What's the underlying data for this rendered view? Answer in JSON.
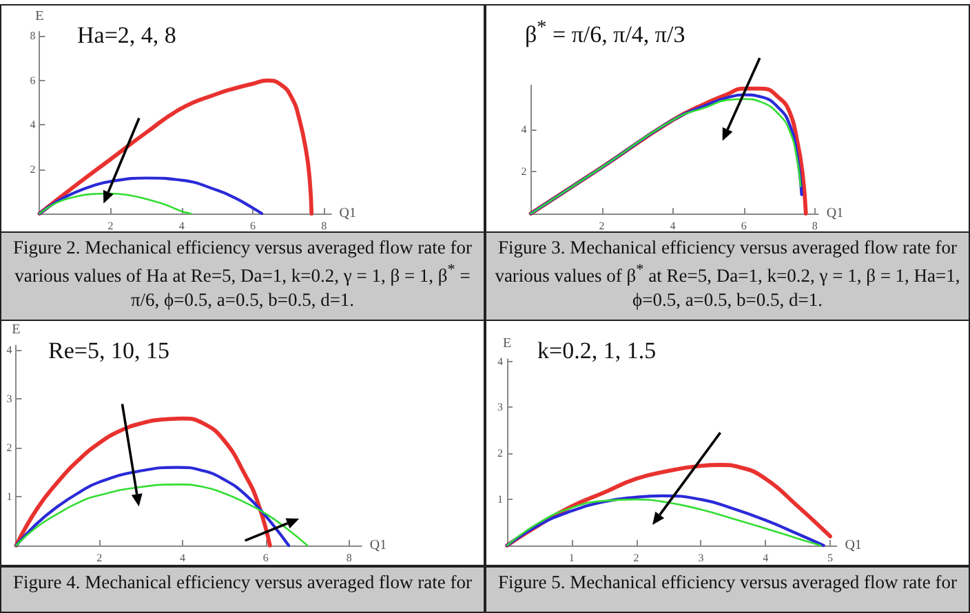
{
  "chart_data": [
    {
      "type": "line",
      "xlabel": "Q1",
      "ylabel": "E",
      "xlim": [
        0,
        8.2
      ],
      "ylim": [
        0,
        8.2
      ],
      "xticks": [
        2,
        4,
        6,
        8
      ],
      "yticks": [
        2,
        4,
        6,
        8
      ],
      "marker": "none",
      "line_style": "solid",
      "annotations": [
        "Ha=2, 4, 8",
        "Figure 2. Mechanical efficiency versus averaged flow rate for various values of Ha at Re=5, Da=1, k=0.2, γ = 1, β = 1, β$^{*}$ = π/6, ϕ=0.5, a=0.5, b=0.5, d=1."
      ],
      "series": [
        {
          "color": "#e8322f",
          "x": [
            0,
            1,
            2,
            3,
            4,
            5,
            5.5,
            6,
            6.4,
            6.8,
            7.1,
            7.3,
            7.5,
            7.6,
            7.65
          ],
          "values": [
            0,
            1.25,
            2.45,
            3.65,
            4.75,
            5.4,
            5.65,
            5.85,
            6.0,
            5.8,
            5.2,
            4.3,
            2.8,
            1.5,
            0
          ]
        },
        {
          "color": "#2a2ad8",
          "x": [
            0,
            0.5,
            1,
            1.5,
            2,
            3,
            4,
            5,
            5.5,
            6,
            6.25
          ],
          "values": [
            0,
            0.55,
            0.95,
            1.25,
            1.45,
            1.6,
            1.5,
            1.05,
            0.7,
            0.25,
            0
          ]
        },
        {
          "color": "#33dd33",
          "x": [
            0,
            0.5,
            1,
            1.5,
            2,
            2.5,
            3,
            3.5,
            4,
            4.25
          ],
          "values": [
            0,
            0.5,
            0.75,
            0.88,
            0.9,
            0.83,
            0.65,
            0.42,
            0.1,
            0
          ]
        }
      ]
    },
    {
      "type": "line",
      "xlabel": "Q1",
      "xlim": [
        0,
        8.1
      ],
      "ylim": [
        0,
        6.1
      ],
      "xticks": [
        2,
        4,
        6,
        8
      ],
      "yticks": [
        2,
        4
      ],
      "marker": "none",
      "line_style": "solid",
      "annotations": [
        "β$^{*}$ = π/6, π/4, π/3",
        "Figure 3. Mechanical efficiency versus averaged flow rate for various values of β$^{*}$ at Re=5, Da=1, k=0.2, γ = 1, β = 1, Ha=1, ϕ=0.5, a=0.5, b=0.5, d=1."
      ],
      "series": [
        {
          "color": "#e8322f",
          "x": [
            0,
            2,
            4,
            5,
            5.5,
            6,
            6.5,
            7,
            7.3,
            7.5,
            7.65,
            7.75
          ],
          "values": [
            0,
            2.2,
            4.45,
            5.3,
            5.65,
            5.95,
            5.95,
            5.5,
            4.8,
            3.5,
            2,
            0
          ]
        },
        {
          "color": "#2a2ad8",
          "x": [
            0,
            2,
            4,
            5,
            5.5,
            6,
            6.5,
            7,
            7.3,
            7.5,
            7.63
          ],
          "values": [
            0,
            2.2,
            4.45,
            5.2,
            5.5,
            5.65,
            5.55,
            5.0,
            4.2,
            2.8,
            0.9
          ]
        },
        {
          "color": "#33dd33",
          "x": [
            0,
            2,
            4,
            5,
            5.5,
            6,
            6.5,
            7,
            7.3,
            7.5,
            7.6
          ],
          "values": [
            0,
            2.2,
            4.45,
            5.1,
            5.4,
            5.45,
            5.3,
            4.7,
            3.9,
            2.6,
            1.3
          ]
        }
      ]
    },
    {
      "type": "line",
      "xlabel": "Q1",
      "ylabel": "E",
      "xlim": [
        0,
        8.3
      ],
      "ylim": [
        0,
        4.1
      ],
      "xticks": [
        2,
        4,
        6,
        8
      ],
      "yticks": [
        1,
        2,
        3,
        4
      ],
      "marker": "none",
      "line_style": "solid",
      "annotations": [
        "Re=5, 10, 15",
        "Figure 4. Mechanical efficiency versus averaged flow rate for"
      ],
      "series": [
        {
          "color": "#e8322f",
          "x": [
            0,
            0.5,
            1,
            1.5,
            2,
            2.5,
            3,
            3.5,
            4,
            4.5,
            5,
            5.5,
            5.8,
            6.1
          ],
          "values": [
            0,
            0.75,
            1.3,
            1.75,
            2.1,
            2.35,
            2.5,
            2.58,
            2.6,
            2.5,
            2.15,
            1.45,
            0.9,
            0
          ]
        },
        {
          "color": "#2a2ad8",
          "x": [
            0,
            0.5,
            1,
            1.5,
            2,
            3,
            3.9,
            4.5,
            5,
            5.5,
            6,
            6.55
          ],
          "values": [
            0,
            0.45,
            0.8,
            1.08,
            1.3,
            1.53,
            1.6,
            1.53,
            1.35,
            1.05,
            0.6,
            0
          ]
        },
        {
          "color": "#33dd33",
          "x": [
            0,
            0.5,
            1,
            1.5,
            2,
            3,
            3.9,
            4.5,
            5,
            5.5,
            6,
            6.5,
            7
          ],
          "values": [
            0,
            0.38,
            0.65,
            0.88,
            1.03,
            1.2,
            1.25,
            1.2,
            1.07,
            0.88,
            0.65,
            0.35,
            0
          ]
        }
      ]
    },
    {
      "type": "line",
      "xlabel": "Q1",
      "ylabel": "E",
      "xlim": [
        0,
        5.1
      ],
      "ylim": [
        0,
        4.05
      ],
      "xticks": [
        1,
        2,
        3,
        4,
        5
      ],
      "yticks": [
        1,
        2,
        3,
        4
      ],
      "marker": "none",
      "line_style": "solid",
      "annotations": [
        "k=0.2, 1, 1.5",
        "Figure 5. Mechanical efficiency versus averaged flow rate for"
      ],
      "series": [
        {
          "color": "#e8322f",
          "x": [
            0,
            0.5,
            1,
            1.5,
            2,
            2.5,
            3,
            3.3,
            3.6,
            4,
            4.5,
            5
          ],
          "values": [
            0,
            0.45,
            0.85,
            1.15,
            1.45,
            1.62,
            1.73,
            1.75,
            1.7,
            1.45,
            0.85,
            0.2
          ]
        },
        {
          "color": "#2a2ad8",
          "x": [
            0,
            0.5,
            1,
            1.5,
            2,
            2.4,
            3,
            3.5,
            4,
            4.5,
            4.9
          ],
          "values": [
            0,
            0.45,
            0.75,
            0.95,
            1.05,
            1.08,
            1.0,
            0.8,
            0.55,
            0.25,
            0
          ]
        },
        {
          "color": "#33dd33",
          "x": [
            0,
            0.5,
            1,
            1.5,
            2,
            2.5,
            3,
            3.5,
            4,
            4.5,
            4.85
          ],
          "values": [
            0,
            0.5,
            0.82,
            0.97,
            1.0,
            0.93,
            0.78,
            0.58,
            0.37,
            0.15,
            0
          ]
        }
      ]
    }
  ]
}
